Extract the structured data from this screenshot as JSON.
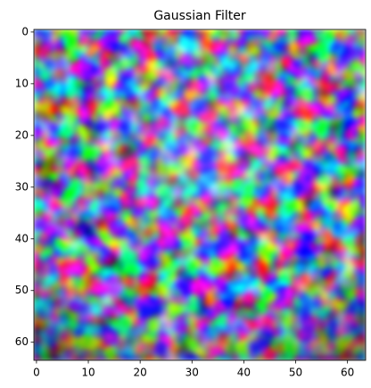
{
  "chart_data": {
    "type": "image",
    "title": "Gaussian Filter",
    "xlim": [
      -0.5,
      63.5
    ],
    "xticks": [
      0,
      10,
      20,
      30,
      40,
      50,
      60
    ],
    "ylim": [
      63.5,
      -0.5
    ],
    "yticks": [
      0,
      10,
      20,
      30,
      40,
      50,
      60
    ]
  }
}
